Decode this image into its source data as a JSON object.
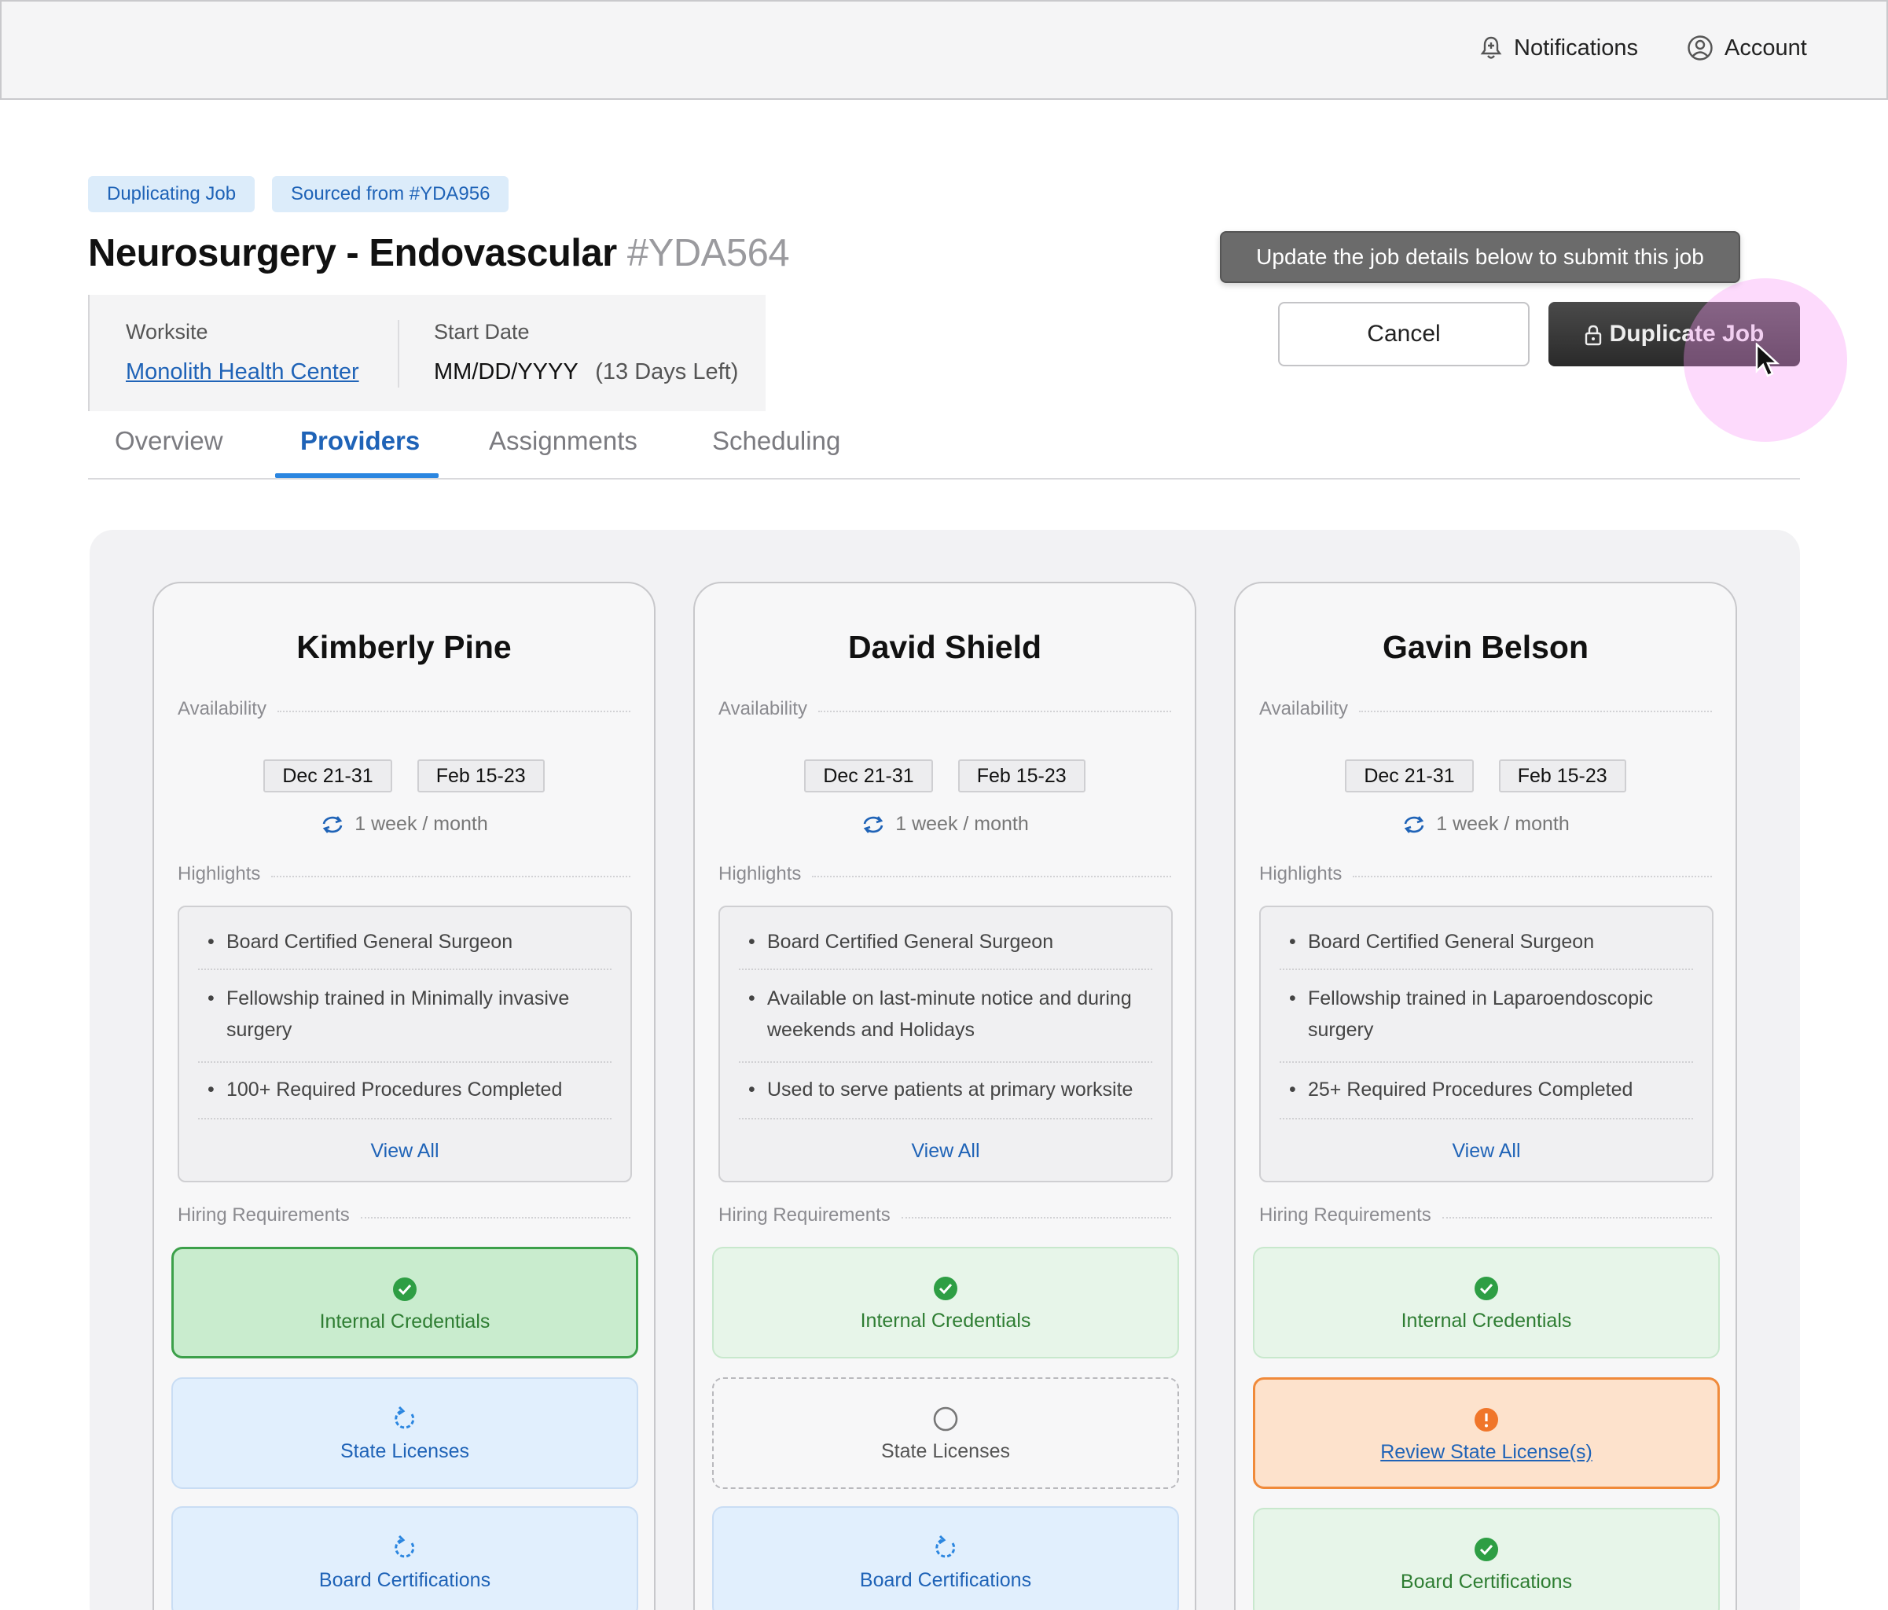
{
  "topbar": {
    "notifications_label": "Notifications",
    "account_label": "Account"
  },
  "chips": [
    "Duplicating Job",
    "Sourced from #YDA956"
  ],
  "job": {
    "title": "Neurosurgery - Endovascular",
    "id": "#YDA564",
    "worksite_label": "Worksite",
    "worksite_value": "Monolith Health Center",
    "start_date_label": "Start Date",
    "start_date_value": "MM/DD/YYYY",
    "days_left": "(13 Days Left)"
  },
  "actions": {
    "tooltip": "Update the job details below to submit this job",
    "cancel_label": "Cancel",
    "duplicate_label": "Duplicate Job"
  },
  "tabs": [
    {
      "label": "Overview",
      "active": false
    },
    {
      "label": "Providers",
      "active": true
    },
    {
      "label": "Assignments",
      "active": false
    },
    {
      "label": "Scheduling",
      "active": false
    }
  ],
  "sections": {
    "availability": "Availability",
    "highlights": "Highlights",
    "hiring": "Hiring Requirements",
    "view_all": "View All"
  },
  "providers": [
    {
      "name": "Kimberly Pine",
      "dates": [
        "Dec 21-31",
        "Feb 15-23"
      ],
      "frequency": "1 week / month",
      "highlights": [
        "Board Certified General Surgeon",
        "Fellowship trained in Minimally invasive surgery",
        "100+ Required Procedures Completed"
      ],
      "requirements": [
        {
          "label": "Internal Credentials",
          "status": "complete-selected",
          "icon": "check-circle-icon"
        },
        {
          "label": "State Licenses",
          "status": "in-progress",
          "icon": "refresh-icon"
        },
        {
          "label": "Board Certifications",
          "status": "in-progress",
          "icon": "refresh-icon"
        }
      ]
    },
    {
      "name": "David Shield",
      "dates": [
        "Dec 21-31",
        "Feb 15-23"
      ],
      "frequency": "1 week / month",
      "highlights": [
        "Board Certified General Surgeon",
        "Available on last-minute notice and during weekends and Holidays",
        "Used to serve patients at primary worksite"
      ],
      "requirements": [
        {
          "label": "Internal Credentials",
          "status": "complete",
          "icon": "check-circle-icon"
        },
        {
          "label": "State Licenses",
          "status": "not-started",
          "icon": "empty-circle-icon"
        },
        {
          "label": "Board Certifications",
          "status": "in-progress",
          "icon": "refresh-icon"
        }
      ]
    },
    {
      "name": "Gavin Belson",
      "dates": [
        "Dec 21-31",
        "Feb 15-23"
      ],
      "frequency": "1 week / month",
      "highlights": [
        "Board Certified General Surgeon",
        "Fellowship trained in Laparoendoscopic surgery",
        "25+ Required Procedures Completed"
      ],
      "requirements": [
        {
          "label": "Internal Credentials",
          "status": "complete",
          "icon": "check-circle-icon"
        },
        {
          "label": "Review State License(s)",
          "status": "warning",
          "icon": "alert-circle-icon"
        },
        {
          "label": "Board Certifications",
          "status": "complete",
          "icon": "check-circle-icon"
        }
      ]
    }
  ],
  "colors": {
    "accent_blue": "#1f63b7",
    "success_green": "#2e9e44",
    "warning_orange": "#f08a3a"
  }
}
